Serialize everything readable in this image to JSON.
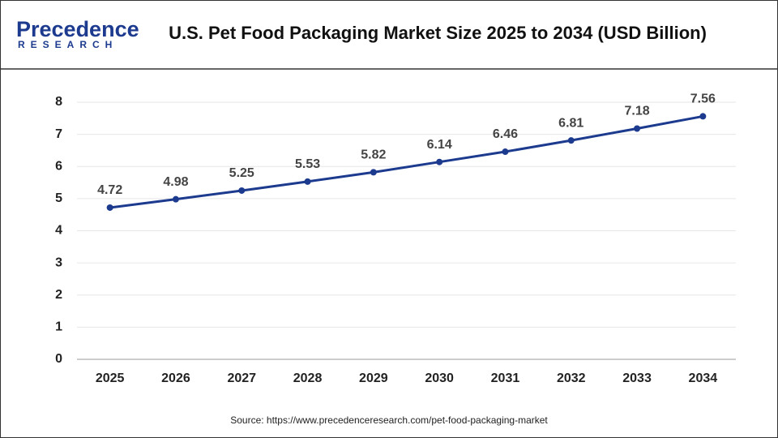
{
  "logo": {
    "name": "Precedence",
    "sub": "RESEARCH"
  },
  "chart_data": {
    "type": "line",
    "title": "U.S. Pet Food Packaging Market Size 2025 to 2034 (USD Billion)",
    "categories": [
      "2025",
      "2026",
      "2027",
      "2028",
      "2029",
      "2030",
      "2031",
      "2032",
      "2033",
      "2034"
    ],
    "values": [
      4.72,
      4.98,
      5.25,
      5.53,
      5.82,
      6.14,
      6.46,
      6.81,
      7.18,
      7.56
    ],
    "color": "#1c3a8e",
    "ylim": [
      0,
      8
    ],
    "yticks": [
      0,
      1,
      2,
      3,
      4,
      5,
      6,
      7,
      8
    ],
    "grid": true
  },
  "source": "Source: https://www.precedenceresearch.com/pet-food-packaging-market"
}
